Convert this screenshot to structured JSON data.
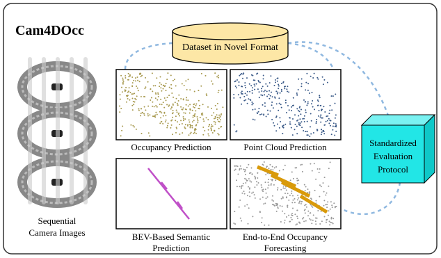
{
  "title": "Cam4DOcc",
  "dataset": {
    "label": "Dataset in Novel Format"
  },
  "inputs": {
    "label": [
      "Sequential",
      "Camera Images"
    ]
  },
  "panels": [
    {
      "label": [
        "Occupancy Prediction"
      ]
    },
    {
      "label": [
        "Point Cloud Prediction"
      ]
    },
    {
      "label": [
        "BEV-Based Semantic",
        "Prediction"
      ]
    },
    {
      "label": [
        "End-to-End Occupancy",
        "Forecasting"
      ]
    }
  ],
  "evaluation": {
    "label": [
      "Standardized",
      "Evaluation",
      "Protocol"
    ]
  }
}
